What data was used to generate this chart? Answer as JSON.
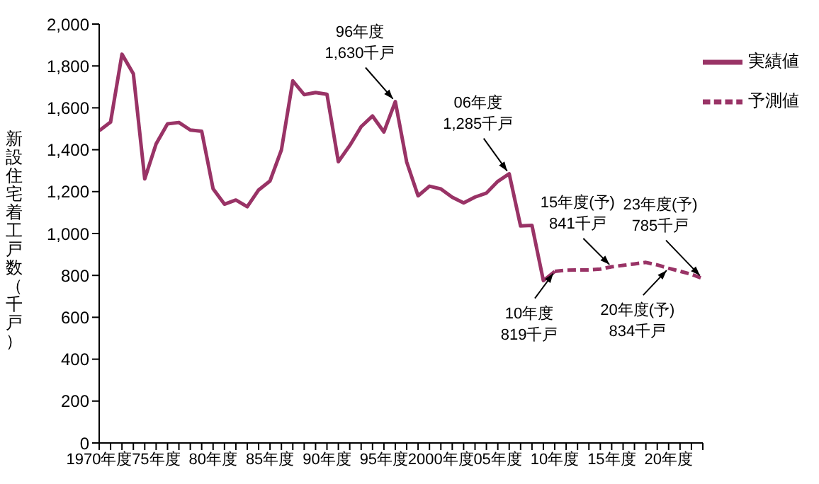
{
  "chart_data": {
    "type": "line",
    "ylabel": "新設住宅着工戸数（千戸）",
    "categories": [
      "1970年度",
      null,
      null,
      null,
      null,
      "75年度",
      null,
      null,
      null,
      null,
      "80年度",
      null,
      null,
      null,
      null,
      "85年度",
      null,
      null,
      null,
      null,
      "90年度",
      null,
      null,
      null,
      null,
      "95年度",
      null,
      null,
      null,
      null,
      "2000年度",
      null,
      null,
      null,
      null,
      "05年度",
      null,
      null,
      null,
      null,
      "10年度",
      null,
      null,
      null,
      null,
      "15年度",
      null,
      null,
      null,
      null,
      "20年度",
      null,
      null,
      null
    ],
    "series": [
      {
        "name": "実績値",
        "color": "#993366",
        "line_style": "solid",
        "values": [
          1491,
          1532,
          1856,
          1763,
          1261,
          1428,
          1524,
          1530,
          1494,
          1488,
          1214,
          1140,
          1160,
          1128,
          1208,
          1251,
          1399,
          1729,
          1663,
          1673,
          1665,
          1343,
          1420,
          1510,
          1561,
          1485,
          1630,
          1341,
          1180,
          1226,
          1213,
          1173,
          1146,
          1174,
          1193,
          1249,
          1285,
          1036,
          1039,
          775,
          819,
          null,
          null,
          null,
          null,
          null,
          null,
          null,
          null,
          null,
          null,
          null,
          null,
          null
        ]
      },
      {
        "name": "予測値",
        "color": "#993366",
        "line_style": "dashed",
        "values": [
          null,
          null,
          null,
          null,
          null,
          null,
          null,
          null,
          null,
          null,
          null,
          null,
          null,
          null,
          null,
          null,
          null,
          null,
          null,
          null,
          null,
          null,
          null,
          null,
          null,
          null,
          null,
          null,
          null,
          null,
          null,
          null,
          null,
          null,
          null,
          null,
          null,
          null,
          null,
          null,
          819,
          825,
          826,
          826,
          830,
          841,
          848,
          855,
          862,
          850,
          834,
          820,
          805,
          785
        ]
      }
    ],
    "ylim": [
      0,
      2000
    ],
    "yticks": [
      0,
      200,
      400,
      600,
      800,
      {
        "value": 1000,
        "label": "1,000"
      },
      {
        "value": 1200,
        "label": "1,200"
      },
      {
        "value": 1400,
        "label": "1,400"
      },
      {
        "value": 1600,
        "label": "1,600"
      },
      {
        "value": 1800,
        "label": "1,800"
      },
      {
        "value": 2000,
        "label": "2,000"
      }
    ],
    "annotations": [
      "96年度\n1,630千戸",
      "06年度\n1,285千戸",
      "10年度\n819千戸",
      "15年度(予)\n841千戸",
      "20年度(予)\n834千戸",
      "23年度(予)\n785千戸"
    ],
    "grid": false,
    "legend": "top right",
    "marker": "none"
  }
}
